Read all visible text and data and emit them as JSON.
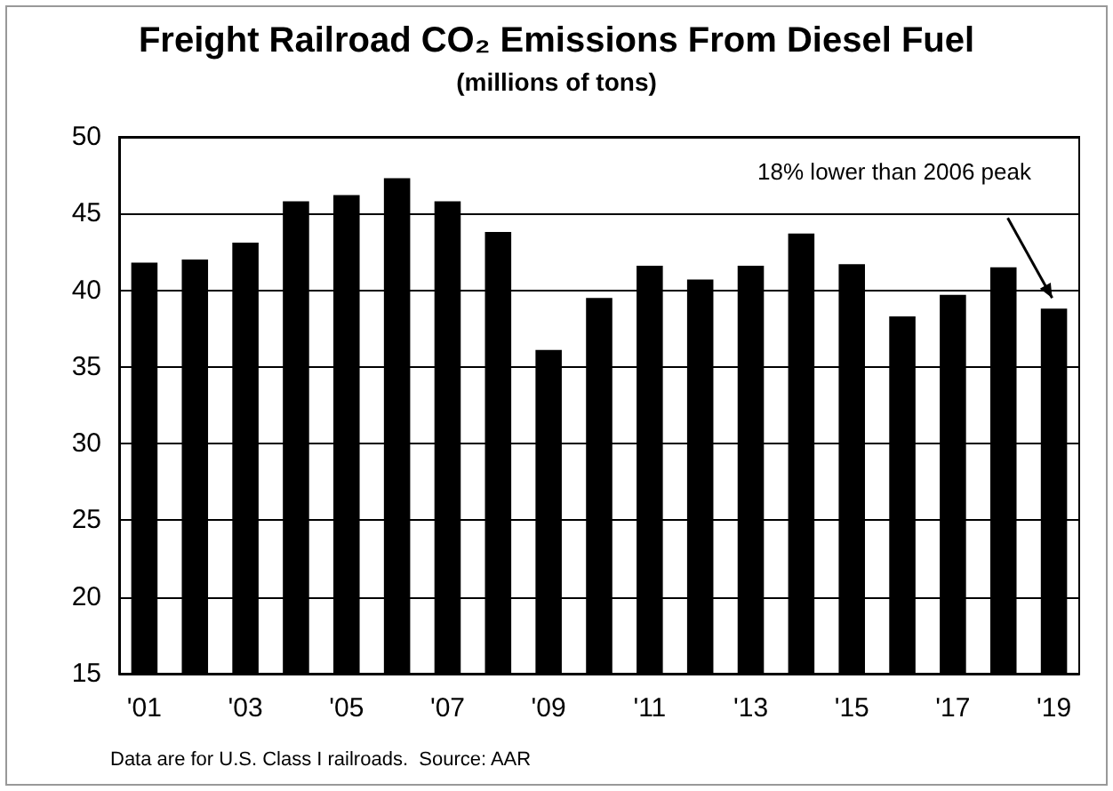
{
  "chart_data": {
    "type": "bar",
    "title": "Freight Railroad CO₂ Emissions From Diesel Fuel",
    "subtitle": "(millions of tons)",
    "categories": [
      "'01",
      null,
      "'03",
      null,
      "'05",
      null,
      "'07",
      null,
      "'09",
      null,
      "'11",
      null,
      "'13",
      null,
      "'15",
      null,
      "'17",
      null,
      "'19"
    ],
    "values": [
      41.8,
      42.0,
      43.1,
      45.8,
      46.2,
      47.3,
      45.8,
      43.8,
      36.1,
      39.5,
      41.6,
      40.7,
      41.6,
      43.7,
      41.7,
      38.3,
      39.7,
      41.5,
      38.8
    ],
    "color": "#000000",
    "ylim": [
      15,
      50
    ],
    "yticks": [
      15,
      20,
      25,
      30,
      35,
      40,
      45,
      50
    ],
    "grid": "y",
    "annotations": [
      "18% lower than 2006 peak",
      "Data are for U.S. Class I railroads.  Source: AAR"
    ]
  }
}
